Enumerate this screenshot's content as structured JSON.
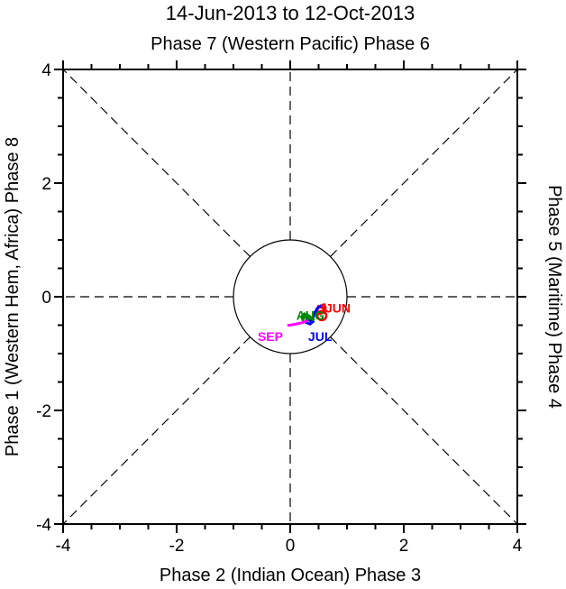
{
  "chart_data": {
    "type": "line",
    "title": "14-Jun-2013 to 12-Oct-2013",
    "top_label": "Phase 7 (Western Pacific) Phase 6",
    "bottom_label": "Phase 2 (Indian Ocean) Phase 3",
    "left_label": "Phase 1 (Western Hem, Africa) Phase 8",
    "right_label": "Phase 5 (Maritime) Phase 4",
    "xlim": [
      -4,
      4
    ],
    "ylim": [
      -4,
      4
    ],
    "xticks": [
      -4,
      -2,
      0,
      2,
      4
    ],
    "yticks": [
      -4,
      -2,
      0,
      2,
      4
    ],
    "xtick_labels": [
      "-4",
      "-2",
      "0",
      "2",
      "4"
    ],
    "ytick_labels": [
      "-4",
      "-2",
      "0",
      "2",
      "4"
    ],
    "circle_radius": 1,
    "series": [
      {
        "name": "JUN",
        "color": "#ff0000",
        "x": [
          0.62,
          0.58,
          0.5,
          0.47,
          0.5,
          0.58,
          0.62,
          0.6,
          0.55
        ],
        "y": [
          -0.3,
          -0.2,
          -0.17,
          -0.24,
          -0.3,
          -0.28,
          -0.2,
          -0.14,
          -0.15
        ],
        "label_pos": [
          0.65,
          -0.26
        ]
      },
      {
        "name": "JUL",
        "color": "#0000ff",
        "x": [
          0.55,
          0.48,
          0.42,
          0.4,
          0.35,
          0.3,
          0.28,
          0.35,
          0.42
        ],
        "y": [
          -0.15,
          -0.2,
          -0.3,
          -0.38,
          -0.42,
          -0.38,
          -0.45,
          -0.48,
          -0.42
        ],
        "label_pos": [
          0.32,
          -0.49
        ]
      },
      {
        "name": "AUG",
        "color": "#008800",
        "x": [
          0.42,
          0.35,
          0.3,
          0.25,
          0.22,
          0.2,
          0.25,
          0.32,
          0.3
        ],
        "y": [
          -0.42,
          -0.35,
          -0.32,
          -0.36,
          -0.4,
          -0.35,
          -0.3,
          -0.35,
          -0.42
        ],
        "label_pos": [
          0.18,
          -0.42
        ]
      },
      {
        "name": "SEP",
        "color": "#ff00ff",
        "x": [
          0.3,
          0.2,
          0.1,
          0.0,
          -0.05
        ],
        "y": [
          -0.42,
          -0.46,
          -0.48,
          -0.5,
          -0.5
        ],
        "label_pos": [
          -0.08,
          -0.52
        ]
      }
    ]
  }
}
